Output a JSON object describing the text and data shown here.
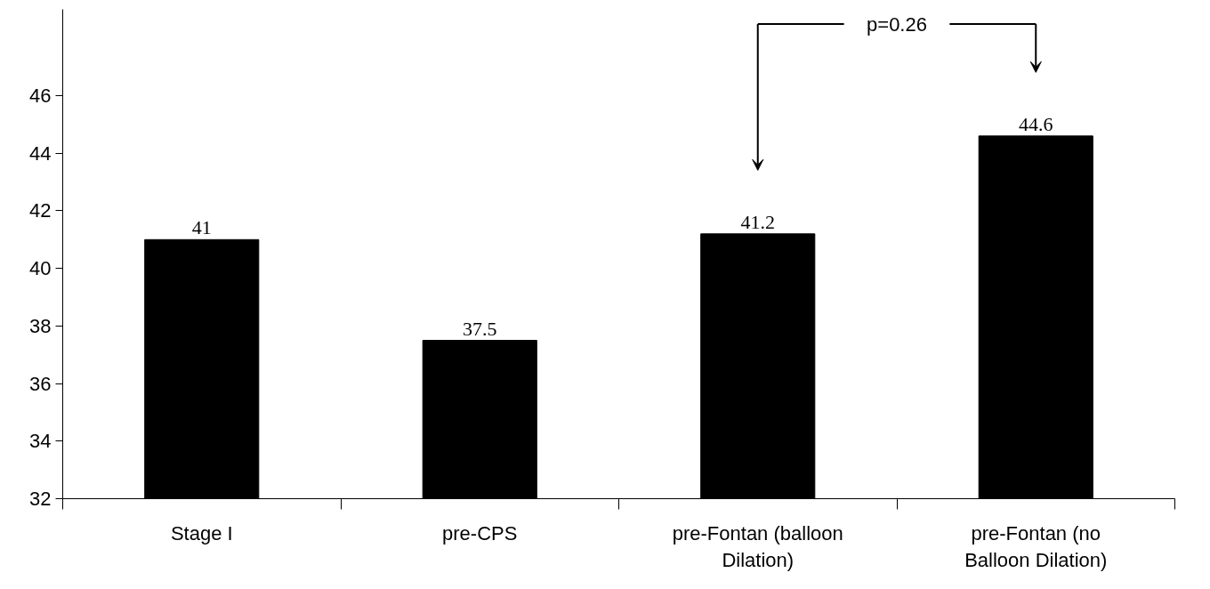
{
  "chart_data": {
    "type": "bar",
    "categories": [
      "Stage I",
      "pre-CPS",
      "pre-Fontan (balloon Dilation)",
      "pre-Fontan (no Balloon Dilation)"
    ],
    "values": [
      41,
      37.5,
      41.2,
      44.6
    ],
    "color": "#000000",
    "ylim": [
      32,
      49
    ],
    "yticks": [
      32,
      34,
      36,
      38,
      40,
      42,
      44,
      46
    ],
    "grid": false,
    "data_labels": true,
    "annotations": [
      "p=0.26"
    ]
  }
}
